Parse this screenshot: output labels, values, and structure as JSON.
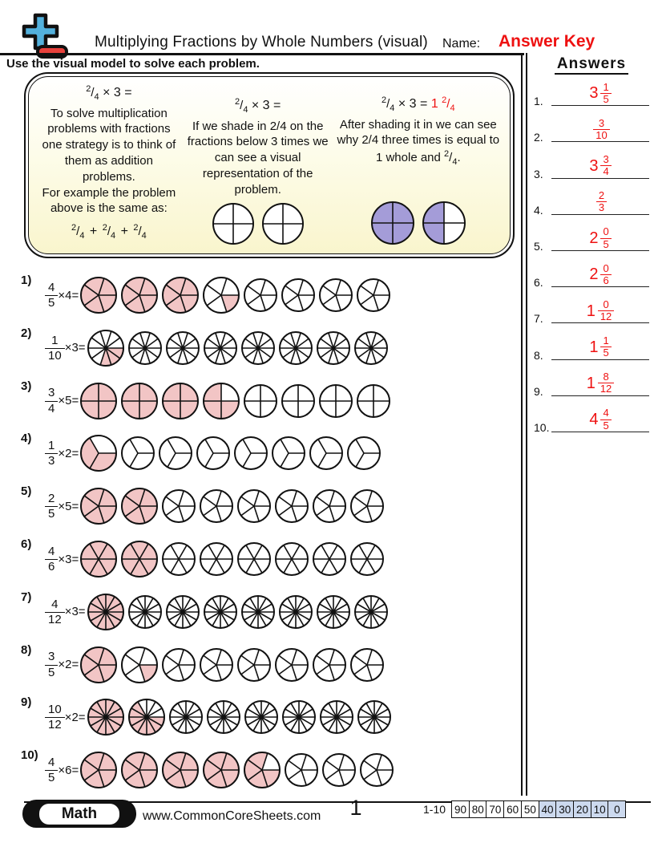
{
  "symbols": {
    "slash": "/",
    "plus": "+",
    "period": ".",
    "times": "×"
  },
  "header": {
    "title": "Multiplying Fractions by Whole Numbers (visual)",
    "name_label": "Name:",
    "answer_key": "Answer Key"
  },
  "instruction": "Use the visual model to solve each problem.",
  "answers_panel": {
    "heading": "Answers",
    "items": [
      {
        "label": "1.",
        "whole": "3",
        "num": "1",
        "den": "5"
      },
      {
        "label": "2.",
        "whole": "",
        "num": "3",
        "den": "10"
      },
      {
        "label": "3.",
        "whole": "3",
        "num": "3",
        "den": "4"
      },
      {
        "label": "4.",
        "whole": "",
        "num": "2",
        "den": "3"
      },
      {
        "label": "5.",
        "whole": "2",
        "num": "0",
        "den": "5"
      },
      {
        "label": "6.",
        "whole": "2",
        "num": "0",
        "den": "6"
      },
      {
        "label": "7.",
        "whole": "1",
        "num": "0",
        "den": "12"
      },
      {
        "label": "8.",
        "whole": "1",
        "num": "1",
        "den": "5"
      },
      {
        "label": "9.",
        "whole": "1",
        "num": "8",
        "den": "12"
      },
      {
        "label": "10.",
        "whole": "4",
        "num": "4",
        "den": "5"
      }
    ]
  },
  "example": {
    "col1": {
      "eq": {
        "num": "2",
        "den": "4",
        "tail": "× 3 ="
      },
      "body": "To solve multiplication problems with fractions one strategy is to think of them as addition problems.",
      "body2": "For example the problem above is the same as:",
      "addition": [
        {
          "num": "2",
          "den": "4"
        },
        {
          "num": "2",
          "den": "4"
        },
        {
          "num": "2",
          "den": "4"
        }
      ]
    },
    "col2": {
      "eq": {
        "num": "2",
        "den": "4",
        "tail": "× 3 ="
      },
      "body": "If we shade in 2/4 on the fractions below 3 times we can see a visual representation of the problem.",
      "circles": [
        {
          "slices": 4,
          "shaded": [],
          "size": 54
        },
        {
          "slices": 4,
          "shaded": [],
          "size": 54
        }
      ]
    },
    "col3": {
      "eq": {
        "num": "2",
        "den": "4",
        "tail": "× 3 =",
        "result_whole": "1",
        "result_num": "2",
        "result_den": "4"
      },
      "body": "After shading it in we can see why 2/4 three times is equal to 1 whole and",
      "tail_frac": {
        "num": "2",
        "den": "4"
      },
      "circles": [
        {
          "slices": 4,
          "shaded": [
            0,
            1,
            2,
            3
          ],
          "fill": "purple",
          "size": 56
        },
        {
          "slices": 4,
          "shaded": [
            1,
            2
          ],
          "fill": "purple",
          "size": 56
        }
      ]
    }
  },
  "problems": [
    {
      "label": "1)",
      "num": "4",
      "den": "5",
      "mult_text": "×4=",
      "slices": 5,
      "shaded": [
        5,
        5,
        5,
        1,
        0,
        0,
        0,
        0
      ]
    },
    {
      "label": "2)",
      "num": "1",
      "den": "10",
      "mult_text": "×3=",
      "slices": 10,
      "shaded": [
        3,
        0,
        0,
        0,
        0,
        0,
        0,
        0
      ]
    },
    {
      "label": "3)",
      "num": "3",
      "den": "4",
      "mult_text": "×5=",
      "slices": 4,
      "shaded": [
        4,
        4,
        4,
        3,
        0,
        0,
        0,
        0
      ]
    },
    {
      "label": "4)",
      "num": "1",
      "den": "3",
      "mult_text": "×2=",
      "slices": 3,
      "shaded": [
        2,
        0,
        0,
        0,
        0,
        0,
        0,
        0
      ]
    },
    {
      "label": "5)",
      "num": "2",
      "den": "5",
      "mult_text": "×5=",
      "slices": 5,
      "shaded": [
        5,
        5,
        0,
        0,
        0,
        0,
        0,
        0
      ]
    },
    {
      "label": "6)",
      "num": "4",
      "den": "6",
      "mult_text": "×3=",
      "slices": 6,
      "shaded": [
        6,
        6,
        0,
        0,
        0,
        0,
        0,
        0
      ]
    },
    {
      "label": "7)",
      "num": "4",
      "den": "12",
      "mult_text": "×3=",
      "slices": 12,
      "shaded": [
        12,
        0,
        0,
        0,
        0,
        0,
        0,
        0
      ]
    },
    {
      "label": "8)",
      "num": "3",
      "den": "5",
      "mult_text": "×2=",
      "slices": 5,
      "shaded": [
        5,
        1,
        0,
        0,
        0,
        0,
        0,
        0
      ]
    },
    {
      "label": "9)",
      "num": "10",
      "den": "12",
      "mult_text": "×2=",
      "slices": 12,
      "shaded": [
        12,
        8,
        0,
        0,
        0,
        0,
        0,
        0
      ]
    },
    {
      "label": "10)",
      "num": "4",
      "den": "5",
      "mult_text": "×6=",
      "slices": 5,
      "shaded": [
        5,
        5,
        5,
        5,
        4,
        0,
        0,
        0
      ]
    }
  ],
  "footer": {
    "badge": "Math",
    "url": "www.CommonCoreSheets.com",
    "page": "1",
    "scale_label": "1-10",
    "scale": [
      "90",
      "80",
      "70",
      "60",
      "50",
      "40",
      "30",
      "20",
      "10",
      "0"
    ]
  },
  "colors": {
    "answer_red": "#ee1111",
    "shade_pink": "#f2c5c5",
    "shade_purple": "#a49cd8",
    "scale_blue": "#ccd9ee",
    "logo_blue": "#53b1dd",
    "logo_red": "#e8413c",
    "box_yellow": "#f9f5cd"
  }
}
